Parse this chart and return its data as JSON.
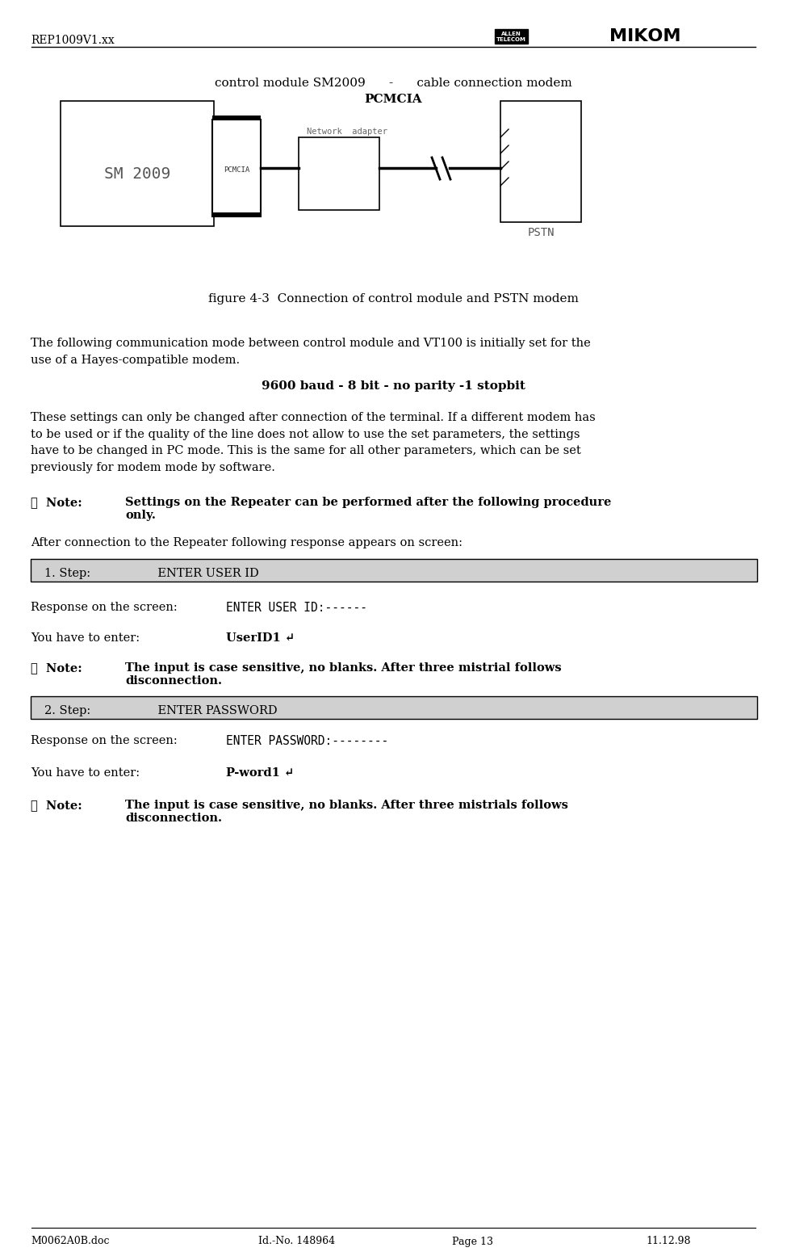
{
  "header_left": "REP1009V1.xx",
  "footer_items": [
    "M0062A0B.doc",
    "Id.-No. 148964",
    "Page 13",
    "11.12.98"
  ],
  "diagram_title_line1": "control module SM2009      -      cable connection modem",
  "diagram_title_line2": "PCMCIA",
  "figure_caption": "figure 4-3  Connection of control module and PSTN modem",
  "para1": "The following communication mode between control module and VT100 is initially set for the\nuse of a Hayes-compatible modem.",
  "bold_line": "9600 baud - 8 bit - no parity -1 stopbit",
  "para2": "These settings can only be changed after connection of the terminal. If a different modem has\nto be used or if the quality of the line does not allow to use the set parameters, the settings\nhave to be changed in PC mode. This is the same for all other parameters, which can be set\npreviously for modem mode by software.",
  "note1_label": "☞  Note:",
  "note1_text": "Settings on the Repeater can be performed after the following procedure\nonly.",
  "after_note1": "After connection to the Repeater following response appears on screen:",
  "step1_box": "1. Step:                  ENTER USER ID",
  "step1_screen_label": "Response on the screen:",
  "step1_screen_text": "ENTER USER ID:------",
  "step1_enter_label": "You have to enter:",
  "step1_enter_text": "UserID1 ↵",
  "note2_label": "☞  Note:",
  "note2_text": "The input is case sensitive, no blanks. After three mistrial follows\ndisconnection.",
  "step2_box": "2. Step:                  ENTER PASSWORD",
  "step2_screen_label": "Response on the screen:",
  "step2_screen_text": "ENTER PASSWORD:--------",
  "step2_enter_label": "You have to enter:",
  "step2_enter_text": "P-word1 ↵",
  "note3_label": "☞  Note:",
  "note3_text": "The input is case sensitive, no blanks. After three mistrials follows\ndisconnection.",
  "bg_color": "#ffffff",
  "text_color": "#000000",
  "box_bg": "#e8e8e8"
}
